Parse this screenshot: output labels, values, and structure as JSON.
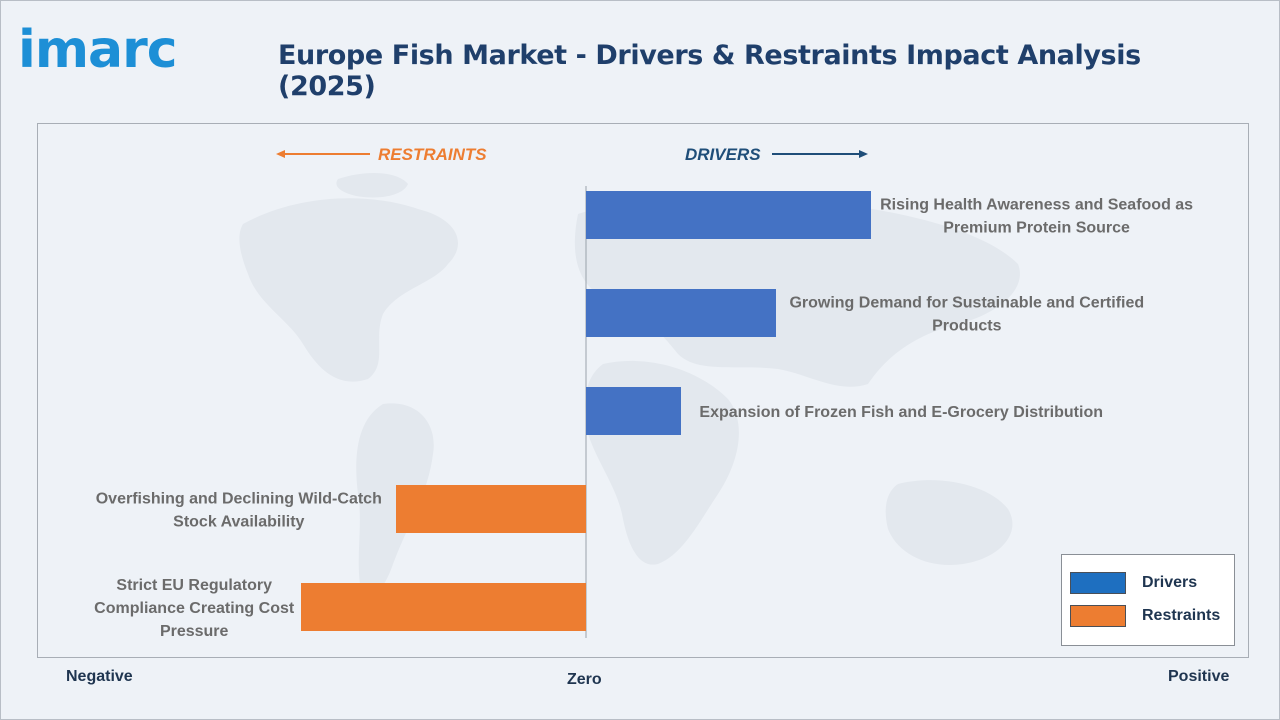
{
  "header": {
    "logo_text": "imarc",
    "title": "Europe Fish Market - Drivers & Restraints Impact Analysis (2025)"
  },
  "colors": {
    "drivers": "#4472c4",
    "restraints": "#ed7d31",
    "title": "#1f3f6b",
    "logo": "#1d8fd6",
    "restraints_heading": "#ed7d31",
    "drivers_heading": "#1f4e79"
  },
  "direction_labels": {
    "restraints": "RESTRAINTS",
    "drivers": "DRIVERS"
  },
  "axis_words": {
    "negative": "Negative",
    "zero": "Zero",
    "positive": "Positive"
  },
  "legend": {
    "position": "bottom-right",
    "items": [
      {
        "label": "Drivers",
        "color": "#1e6fc0"
      },
      {
        "label": "Restraints",
        "color": "#ed7d31"
      }
    ]
  },
  "chart_data": {
    "type": "bar",
    "orientation": "horizontal",
    "title": "Europe Fish Market - Drivers & Restraints Impact Analysis (2025)",
    "xlim": [
      -3,
      3
    ],
    "grid": false,
    "bars": [
      {
        "label_lines": [
          "Rising Health Awareness and Seafood as",
          "Premium Protein Source"
        ],
        "value": 1.5,
        "series": "Drivers"
      },
      {
        "label_lines": [
          "Growing Demand for Sustainable and Certified",
          "Products"
        ],
        "value": 1.0,
        "series": "Drivers"
      },
      {
        "label_lines": [
          "Expansion of Frozen Fish and E-Grocery Distribution"
        ],
        "value": 0.5,
        "series": "Drivers"
      },
      {
        "label_lines": [
          "Overfishing and Declining Wild-Catch",
          "Stock Availability"
        ],
        "value": -1.0,
        "series": "Restraints"
      },
      {
        "label_lines": [
          "Strict EU Regulatory",
          "Compliance Creating Cost",
          "Pressure"
        ],
        "value": -1.5,
        "series": "Restraints"
      }
    ]
  }
}
